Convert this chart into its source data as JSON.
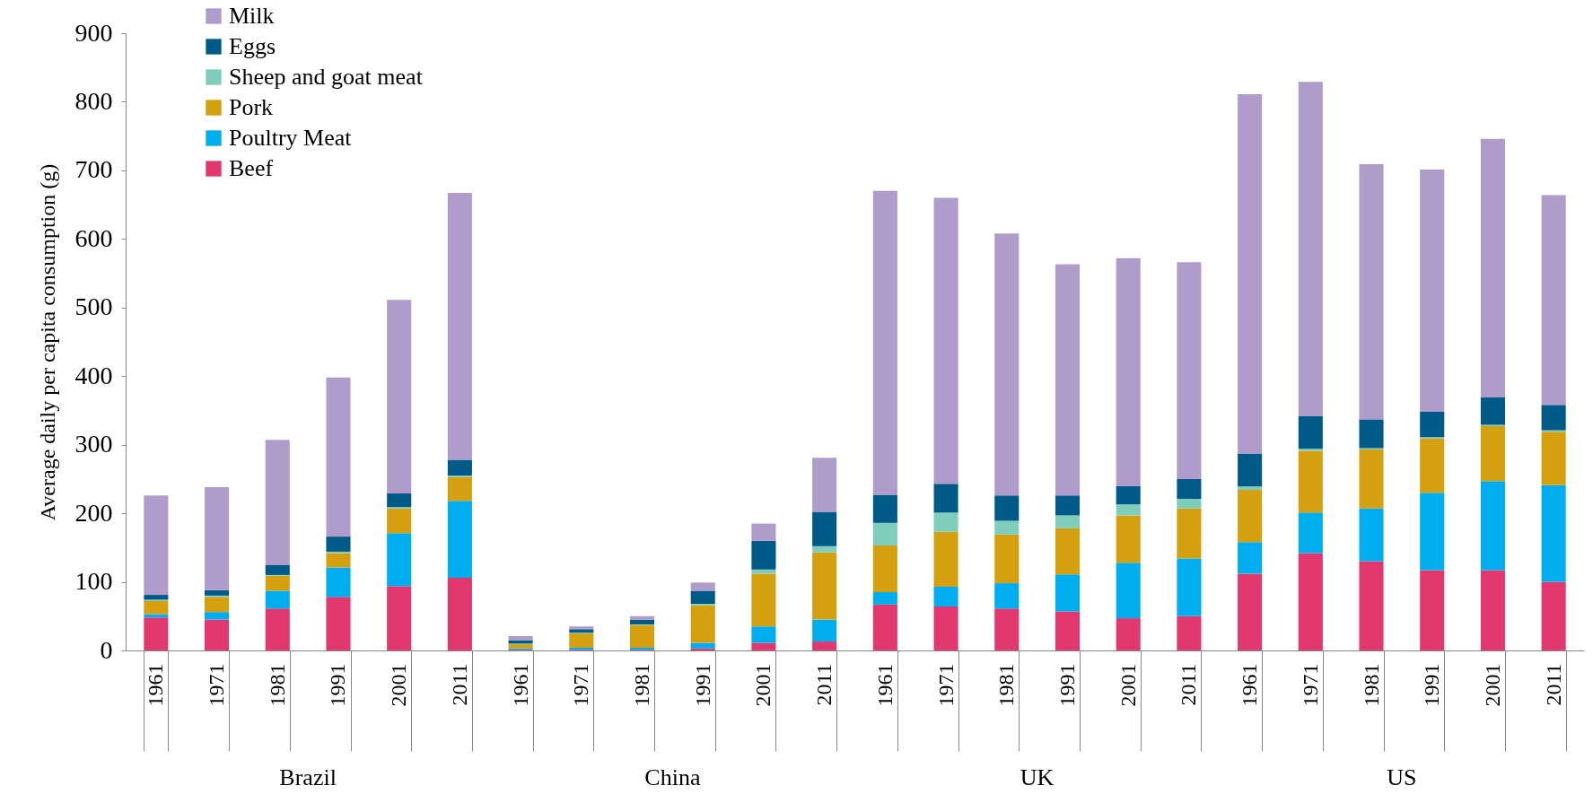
{
  "chart_data": {
    "type": "bar",
    "stacked": true,
    "ylabel": "Average daily per capita consumption (g)",
    "categories": [
      "1961",
      "1971",
      "1981",
      "1991",
      "2001",
      "2011",
      "1961",
      "1971",
      "1981",
      "1991",
      "2001",
      "2011",
      "1961",
      "1971",
      "1981",
      "1991",
      "2001",
      "2011",
      "1961",
      "1971",
      "1981",
      "1991",
      "2001",
      "2011"
    ],
    "series": [
      {
        "name": "Beef",
        "color": "#e0386f",
        "values": [
          48,
          45,
          61,
          78,
          94,
          106,
          1,
          1,
          1,
          3,
          11,
          13,
          67,
          64,
          61,
          57,
          47,
          50,
          112,
          142,
          130,
          117,
          117,
          100
        ]
      },
      {
        "name": "Poultry Meat",
        "color": "#00aeef",
        "values": [
          5,
          11,
          26,
          43,
          77,
          112,
          2,
          3,
          3,
          8,
          24,
          32,
          18,
          29,
          37,
          54,
          81,
          84,
          46,
          59,
          77,
          113,
          130,
          141
        ]
      },
      {
        "name": "Pork",
        "color": "#d4a010",
        "values": [
          19,
          22,
          22,
          21,
          36,
          35,
          6,
          21,
          33,
          55,
          77,
          98,
          68,
          80,
          71,
          67,
          69,
          73,
          76,
          90,
          86,
          79,
          80,
          78
        ]
      },
      {
        "name": "Sheep and goat meat",
        "color": "#7fcdbb",
        "values": [
          2,
          2,
          1,
          2,
          2,
          2,
          1,
          1,
          1,
          2,
          6,
          9,
          33,
          28,
          20,
          19,
          16,
          14,
          5,
          3,
          2,
          2,
          2,
          2
        ]
      },
      {
        "name": "Eggs",
        "color": "#005a87",
        "values": [
          7,
          8,
          15,
          22,
          20,
          23,
          5,
          5,
          7,
          19,
          42,
          50,
          41,
          42,
          37,
          29,
          27,
          29,
          48,
          48,
          42,
          37,
          40,
          37
        ]
      },
      {
        "name": "Milk",
        "color": "#b09ccb",
        "values": [
          145,
          150,
          182,
          232,
          282,
          389,
          6,
          4,
          5,
          12,
          25,
          79,
          443,
          417,
          382,
          337,
          332,
          316,
          524,
          487,
          372,
          353,
          377,
          306
        ]
      }
    ],
    "ylim": [
      0,
      900
    ],
    "yticks": [
      0,
      100,
      200,
      300,
      400,
      500,
      600,
      700,
      800,
      900
    ],
    "grid": false,
    "legend": "top left",
    "annotations": [
      "Brazil",
      "China",
      "UK",
      "US"
    ]
  }
}
